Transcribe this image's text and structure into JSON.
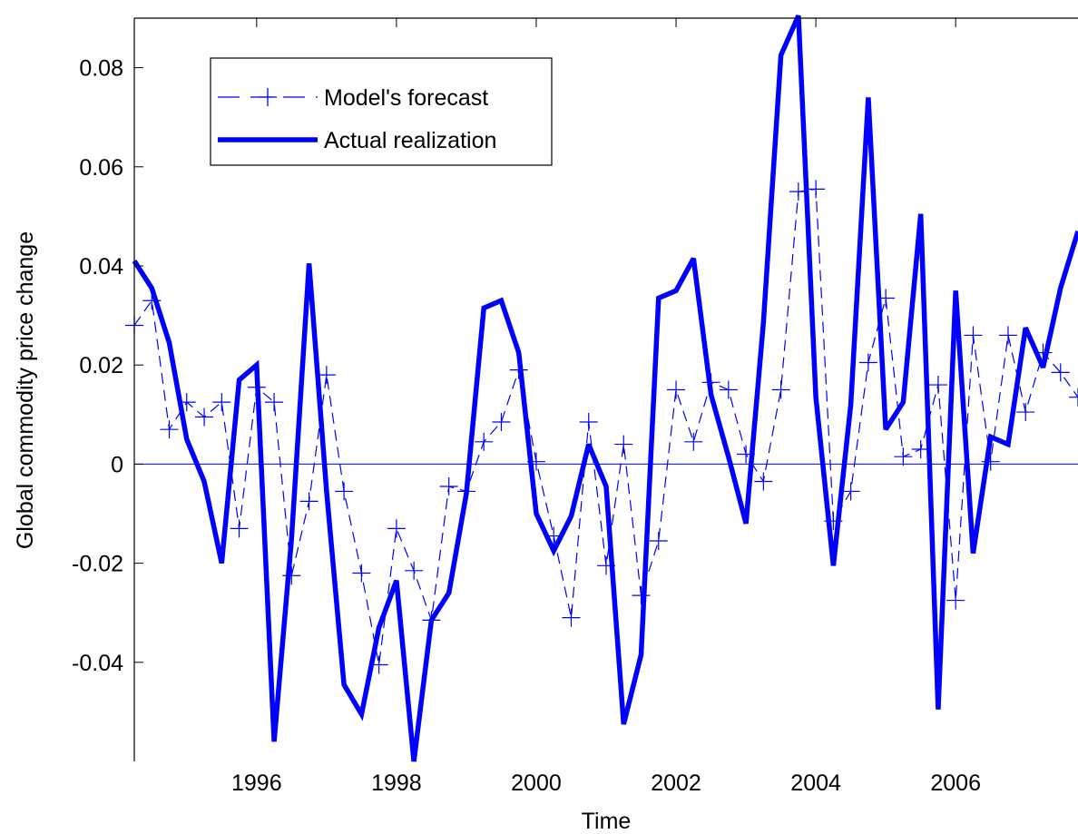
{
  "chart_data": {
    "type": "line",
    "xlabel": "Time",
    "ylabel": "Global commodity price change",
    "xlim": [
      1994.25,
      2007.75
    ],
    "ylim": [
      -0.06,
      0.09
    ],
    "x_ticks": [
      1996,
      1998,
      2000,
      2002,
      2004,
      2006
    ],
    "x_tick_labels": [
      "1996",
      "1998",
      "2000",
      "2002",
      "2004",
      "2006"
    ],
    "y_ticks": [
      -0.04,
      -0.02,
      0,
      0.02,
      0.04,
      0.06,
      0.08
    ],
    "y_tick_labels": [
      "-0.04",
      "-0.02",
      "0",
      "0.02",
      "0.04",
      "0.06",
      "0.08"
    ],
    "grid": false,
    "legend_position": "top-left",
    "zero_line": true,
    "x": [
      1994.25,
      1994.5,
      1994.75,
      1995.0,
      1995.25,
      1995.5,
      1995.75,
      1996.0,
      1996.25,
      1996.5,
      1996.75,
      1997.0,
      1997.25,
      1997.5,
      1997.75,
      1998.0,
      1998.25,
      1998.5,
      1998.75,
      1999.0,
      1999.25,
      1999.5,
      1999.75,
      2000.0,
      2000.25,
      2000.5,
      2000.75,
      2001.0,
      2001.25,
      2001.5,
      2001.75,
      2002.0,
      2002.25,
      2002.5,
      2002.75,
      2003.0,
      2003.25,
      2003.5,
      2003.75,
      2004.0,
      2004.25,
      2004.5,
      2004.75,
      2005.0,
      2005.25,
      2005.5,
      2005.75,
      2006.0,
      2006.25,
      2006.5,
      2006.75,
      2007.0,
      2007.25,
      2007.5,
      2007.75
    ],
    "series": [
      {
        "name": "Model's forecast",
        "color": "#0000ff",
        "style": "dashed-plus",
        "values": [
          0.028,
          0.033,
          0.007,
          0.0125,
          0.0095,
          0.0125,
          -0.013,
          0.0155,
          0.0125,
          -0.0225,
          -0.0075,
          0.018,
          -0.0055,
          -0.022,
          -0.0405,
          -0.013,
          -0.0215,
          -0.0315,
          -0.0045,
          -0.0055,
          0.0045,
          0.0085,
          0.019,
          0.0005,
          -0.0145,
          -0.031,
          0.0085,
          -0.0205,
          0.004,
          -0.0265,
          -0.0155,
          0.015,
          0.0045,
          0.0165,
          0.015,
          0.002,
          -0.0035,
          0.015,
          0.055,
          0.0555,
          -0.0115,
          -0.0055,
          0.0205,
          0.0335,
          0.0015,
          0.003,
          0.016,
          -0.0275,
          0.026,
          0.0005,
          0.026,
          0.0105,
          0.0225,
          0.0185,
          0.0135
        ]
      },
      {
        "name": "Actual realization",
        "color": "#0000ff",
        "style": "solid-thick",
        "values": [
          0.041,
          0.0355,
          0.0245,
          0.005,
          -0.0035,
          -0.02,
          0.017,
          0.02,
          -0.056,
          -0.015,
          0.0405,
          -0.0055,
          -0.0445,
          -0.0505,
          -0.033,
          -0.0235,
          -0.06,
          -0.0315,
          -0.026,
          -0.006,
          0.0315,
          0.033,
          0.0225,
          -0.01,
          -0.0175,
          -0.0105,
          0.004,
          -0.0045,
          -0.0525,
          -0.0385,
          0.0335,
          0.035,
          0.0415,
          0.014,
          0.0015,
          -0.012,
          0.0285,
          0.0825,
          0.0905,
          0.0135,
          -0.0205,
          0.012,
          0.074,
          0.007,
          0.0125,
          0.0505,
          -0.0495,
          0.035,
          -0.018,
          0.0055,
          0.004,
          0.0275,
          0.0195,
          0.0355,
          0.047
        ]
      }
    ]
  }
}
